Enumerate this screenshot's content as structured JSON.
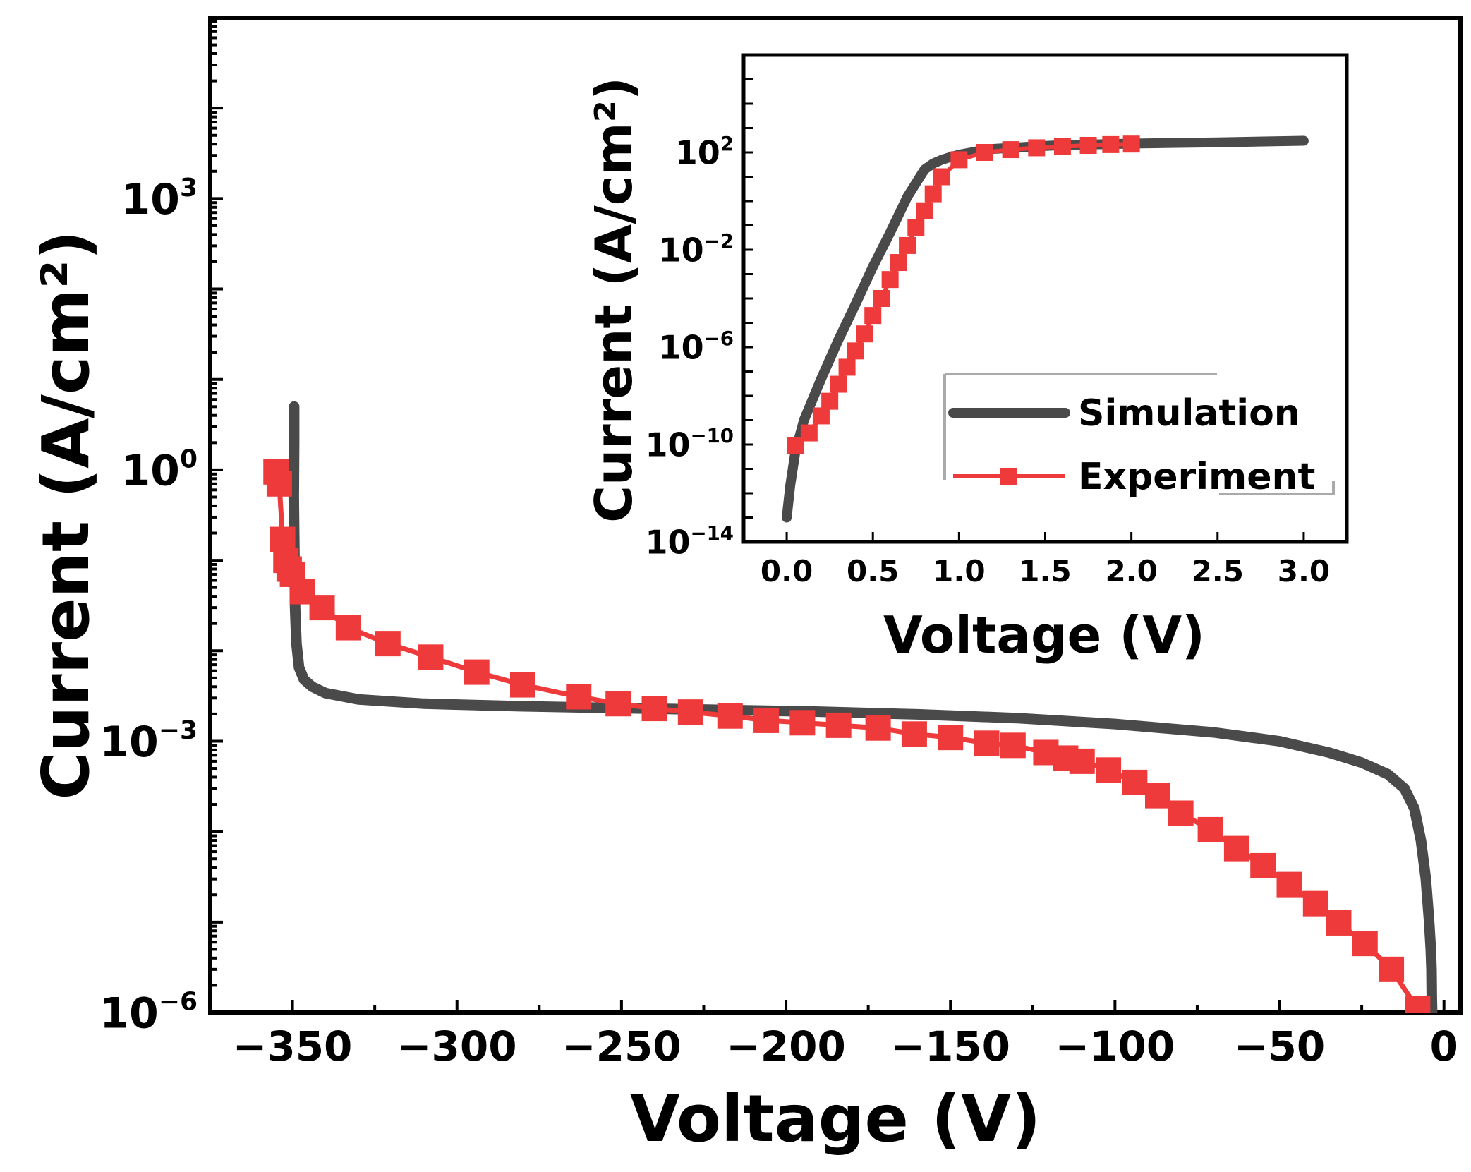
{
  "chart_data": [
    {
      "type": "line",
      "name": "main",
      "xlabel": "Voltage (V)",
      "ylabel": "Current (A/cm²)",
      "yscale": "log",
      "xlim": [
        -375,
        5
      ],
      "ylim": [
        1e-06,
        100000.0
      ],
      "x_ticks": [
        -350,
        -300,
        -250,
        -200,
        -150,
        -100,
        -50,
        0
      ],
      "x_tick_labels": [
        "−350",
        "−300",
        "−250",
        "−200",
        "−150",
        "−100",
        "−50",
        "0"
      ],
      "y_ticks": [
        {
          "value": 1e-06,
          "base": "10",
          "exp": "−6"
        },
        {
          "value": 0.001,
          "base": "10",
          "exp": "−3"
        },
        {
          "value": 1,
          "base": "10",
          "exp": "0"
        },
        {
          "value": 1000,
          "base": "10",
          "exp": "3"
        }
      ],
      "series": [
        {
          "name": "Simulation",
          "color": "#4a4a4a",
          "x": [
            -349.5,
            -349.5,
            -349.6,
            -349.4,
            -349.2,
            -348.8,
            -348.0,
            -346.5,
            -344.0,
            -340.0,
            -330.0,
            -310.0,
            -280.0,
            -250.0,
            -220.0,
            -190.0,
            -160.0,
            -130.0,
            -100.0,
            -70.0,
            -50.0,
            -35.0,
            -25.0,
            -17.0,
            -12.0,
            -9.0,
            -7.0,
            -5.5,
            -4.5,
            -4.0,
            -3.8,
            -3.7,
            -3.6
          ],
          "y": [
            5.0,
            2.0,
            0.5,
            0.1,
            0.03,
            0.012,
            0.0065,
            0.0048,
            0.004,
            0.0034,
            0.0029,
            0.0026,
            0.00243,
            0.00232,
            0.00222,
            0.00212,
            0.00198,
            0.0018,
            0.00155,
            0.00125,
            0.001,
            0.00075,
            0.00058,
            0.00043,
            0.0003,
            0.00018,
            8e-05,
            3e-05,
            1e-05,
            5e-06,
            3e-06,
            1.5e-06,
            1e-06
          ]
        },
        {
          "name": "Experiment",
          "color": "#ee3a3a",
          "x": [
            -355,
            -354,
            -353,
            -352,
            -351,
            -350,
            -347,
            -341,
            -333,
            -321,
            -308,
            -294,
            -280,
            -263,
            -251,
            -240,
            -229,
            -217,
            -206,
            -195,
            -184,
            -172,
            -161,
            -150,
            -139,
            -131,
            -121,
            -115,
            -110,
            -102,
            -94,
            -87,
            -80,
            -71,
            -63,
            -55,
            -47,
            -39,
            -32,
            -24,
            -16,
            -8
          ],
          "y": [
            0.95,
            0.7,
            0.17,
            0.1,
            0.08,
            0.07,
            0.045,
            0.03,
            0.018,
            0.012,
            0.0085,
            0.0058,
            0.0042,
            0.0031,
            0.0026,
            0.0023,
            0.0021,
            0.0019,
            0.0017,
            0.0016,
            0.0015,
            0.0014,
            0.0012,
            0.0011,
            0.00095,
            0.0009,
            0.00075,
            0.00065,
            0.0006,
            0.00048,
            0.00035,
            0.00025,
            0.00016,
            0.000105,
            6.5e-05,
            4.2e-05,
            2.6e-05,
            1.6e-05,
            9.8e-06,
            5.8e-06,
            3e-06,
            1.1e-06
          ]
        }
      ]
    },
    {
      "type": "line",
      "name": "inset",
      "xlabel": "Voltage (V)",
      "ylabel": "Current (A/cm²)",
      "yscale": "log",
      "xlim": [
        -0.25,
        3.25
      ],
      "ylim": [
        1e-14,
        1000000.0
      ],
      "x_ticks": [
        0.0,
        0.5,
        1.0,
        1.5,
        2.0,
        2.5,
        3.0
      ],
      "x_tick_labels": [
        "0.0",
        "0.5",
        "1.0",
        "1.5",
        "2.0",
        "2.5",
        "3.0"
      ],
      "y_ticks": [
        {
          "value": 1e-14,
          "base": "10",
          "exp": "−14"
        },
        {
          "value": 1e-10,
          "base": "10",
          "exp": "−10"
        },
        {
          "value": 1e-06,
          "base": "10",
          "exp": "−6"
        },
        {
          "value": 0.01,
          "base": "10",
          "exp": "−2"
        },
        {
          "value": 100,
          "base": "10",
          "exp": "2"
        }
      ],
      "series": [
        {
          "name": "Simulation",
          "color": "#4a4a4a",
          "x": [
            0.0,
            0.02,
            0.05,
            0.1,
            0.2,
            0.3,
            0.4,
            0.5,
            0.6,
            0.7,
            0.8,
            0.85,
            0.9,
            0.95,
            1.0,
            1.1,
            1.2,
            1.4,
            1.6,
            2.0,
            2.5,
            3.0
          ],
          "y": [
            1e-13,
            2e-12,
            5e-11,
            1e-09,
            5e-08,
            2e-06,
            6e-05,
            0.002,
            0.05,
            1.5,
            20,
            35,
            50,
            65,
            80,
            110,
            140,
            170,
            200,
            230,
            260,
            300
          ]
        },
        {
          "name": "Experiment",
          "color": "#ee3a3a",
          "x": [
            0.05,
            0.13,
            0.2,
            0.25,
            0.3,
            0.35,
            0.4,
            0.45,
            0.5,
            0.55,
            0.6,
            0.65,
            0.7,
            0.75,
            0.8,
            0.85,
            0.9,
            1.0,
            1.15,
            1.3,
            1.45,
            1.6,
            1.75,
            1.88,
            2.0
          ],
          "y": [
            9e-11,
            3e-10,
            1.5e-09,
            6e-09,
            3e-08,
            1.5e-07,
            7e-07,
            3.5e-06,
            2e-05,
            0.0001,
            0.0006,
            0.003,
            0.015,
            0.08,
            0.4,
            2,
            10,
            50,
            100,
            130,
            155,
            175,
            195,
            210,
            220
          ]
        }
      ],
      "legend": {
        "position": "lower-right",
        "entries": [
          "Simulation",
          "Experiment"
        ]
      }
    }
  ]
}
